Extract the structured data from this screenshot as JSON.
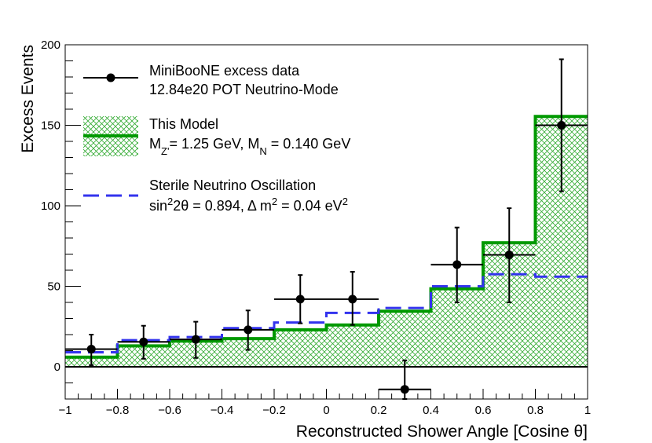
{
  "chart_data": {
    "type": "histogram",
    "title": "",
    "xlabel": "Reconstructed Shower Angle [Cosine θ]",
    "ylabel": "Excess Events",
    "xlim": [
      -1,
      1
    ],
    "ylim": [
      -20,
      200
    ],
    "x_ticks": [
      -1,
      -0.8,
      -0.6,
      -0.4,
      -0.2,
      0,
      0.2,
      0.4,
      0.6,
      0.8,
      1
    ],
    "x_tick_labels": [
      "−1",
      "−0.8",
      "−0.6",
      "−0.4",
      "−0.2",
      "0",
      "0.2",
      "0.4",
      "0.6",
      "0.8",
      "1"
    ],
    "y_ticks": [
      0,
      50,
      100,
      150,
      200
    ],
    "y_tick_labels": [
      "0",
      "50",
      "100",
      "150",
      "200"
    ],
    "bin_edges": [
      -1,
      -0.8,
      -0.6,
      -0.4,
      -0.2,
      0,
      0.2,
      0.4,
      0.6,
      0.8,
      1
    ],
    "series": [
      {
        "name": "MiniBooNE excess data",
        "legend_label": "MiniBooNE excess data",
        "legend_sublabel": "12.84e20 POT Neutrino-Mode",
        "kind": "points_with_errors",
        "color": "#000000",
        "points": [
          {
            "x": -0.9,
            "y": 11,
            "yerr_low": 10,
            "yerr_high": 9
          },
          {
            "x": -0.7,
            "y": 15.5,
            "yerr_low": 10.5,
            "yerr_high": 10
          },
          {
            "x": -0.5,
            "y": 17,
            "yerr_low": 11.5,
            "yerr_high": 11
          },
          {
            "x": -0.3,
            "y": 23,
            "yerr_low": 12.5,
            "yerr_high": 12
          },
          {
            "x": -0.1,
            "y": 42,
            "yerr_low": 15,
            "yerr_high": 15
          },
          {
            "x": 0.1,
            "y": 42,
            "yerr_low": 16,
            "yerr_high": 17
          },
          {
            "x": 0.3,
            "y": -14,
            "yerr_low": 6,
            "yerr_high": 18
          },
          {
            "x": 0.5,
            "y": 63.5,
            "yerr_low": 23.5,
            "yerr_high": 23
          },
          {
            "x": 0.7,
            "y": 69.5,
            "yerr_low": 29.5,
            "yerr_high": 29
          },
          {
            "x": 0.9,
            "y": 150,
            "yerr_low": 41,
            "yerr_high": 41
          }
        ]
      },
      {
        "name": "This Model",
        "legend_label": "This Model",
        "legend_sublabel_parts": [
          "M",
          "Z'",
          "= 1.25 GeV, M",
          "N",
          " = 0.140 GeV"
        ],
        "kind": "step_filled_hatched",
        "color": "#009900",
        "values": [
          6,
          13,
          16,
          17.5,
          23,
          26,
          34.5,
          48.5,
          77,
          155.5
        ]
      },
      {
        "name": "Sterile Neutrino Oscillation",
        "legend_label": "Sterile Neutrino Oscillation",
        "legend_sublabel_parts": [
          "sin",
          "2",
          "2θ = 0.894, Δ m",
          "2",
          " = 0.04 eV",
          "2"
        ],
        "kind": "step_dashed",
        "color": "#3333ee",
        "values": [
          9,
          16.5,
          18.5,
          24,
          27.5,
          33.5,
          36.5,
          50,
          57.5,
          56
        ]
      }
    ]
  }
}
